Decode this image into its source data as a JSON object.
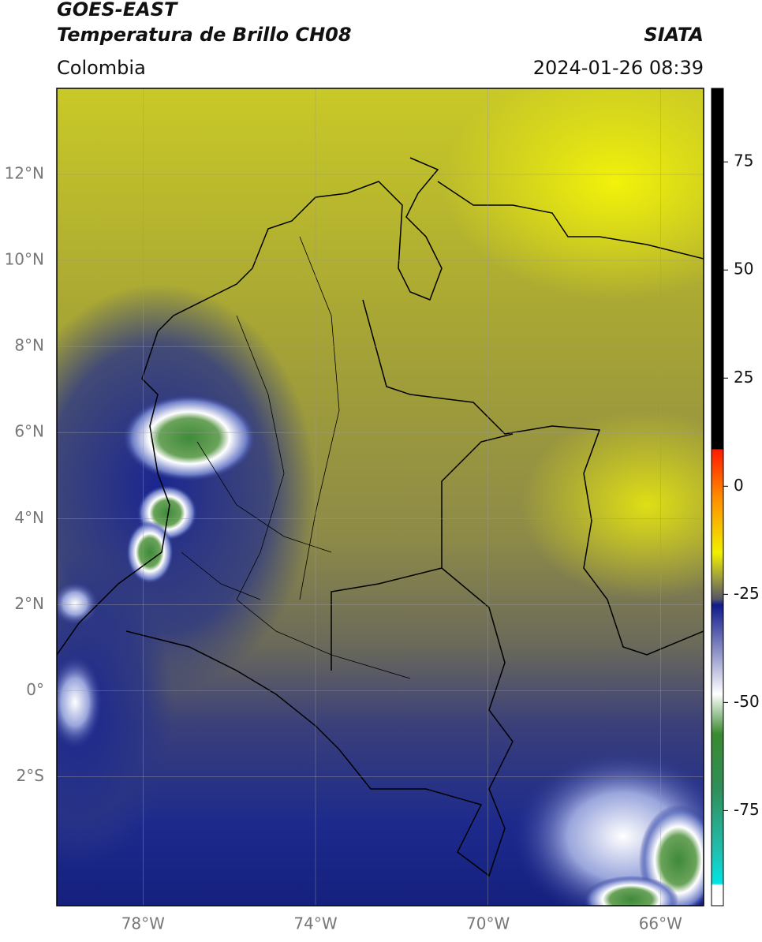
{
  "header": {
    "satellite": "GOES-EAST",
    "product": "Temperatura de Brillo CH08",
    "source": "SIATA",
    "region": "Colombia",
    "datetime": "2024-01-26 08:39"
  },
  "map": {
    "lon_range": [
      -80,
      -65
    ],
    "lat_range": [
      -5,
      14
    ],
    "lat_ticks": [
      {
        "value": 12,
        "label": "12°N"
      },
      {
        "value": 10,
        "label": "10°N"
      },
      {
        "value": 8,
        "label": "8°N"
      },
      {
        "value": 6,
        "label": "6°N"
      },
      {
        "value": 4,
        "label": "4°N"
      },
      {
        "value": 2,
        "label": "2°N"
      },
      {
        "value": 0,
        "label": "0°"
      },
      {
        "value": -2,
        "label": "2°S"
      }
    ],
    "lon_ticks": [
      {
        "value": -78,
        "label": "78°W"
      },
      {
        "value": -74,
        "label": "74°W"
      },
      {
        "value": -70,
        "label": "70°W"
      },
      {
        "value": -66,
        "label": "66°W"
      }
    ]
  },
  "colorbar": {
    "range": [
      -97,
      92
    ],
    "ticks": [
      75,
      50,
      25,
      0,
      -25,
      -50,
      -75
    ]
  }
}
